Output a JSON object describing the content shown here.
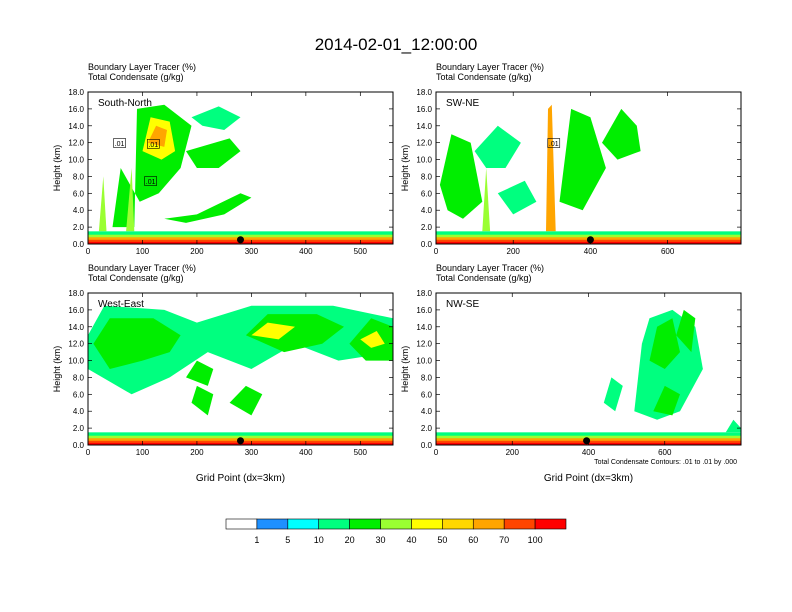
{
  "figure": {
    "title": "2014-02-01_12:00:00",
    "contour_note": "Total Condensate Contours: .01 to .01 by .000"
  },
  "chart_data": [
    {
      "type": "heatmap",
      "panel_label": "South-North",
      "header_lines": [
        "Boundary Layer Tracer    (%)",
        "Total Condensate    (g/kg)"
      ],
      "ylabel": "Height (km)",
      "xlabel": "",
      "xlim": [
        0,
        560
      ],
      "ylim": [
        0,
        18
      ],
      "xticks": [
        0,
        100,
        200,
        300,
        400,
        500
      ],
      "yticks": [
        "0.0",
        "2.0",
        "4.0",
        "6.0",
        "8.0",
        "10.0",
        "12.0",
        "14.0",
        "16.0",
        "18.0"
      ],
      "marker_x": 280,
      "contour_labels": [
        {
          "text": ".01",
          "x": 58,
          "y": 11.9
        },
        {
          "text": ".01",
          "x": 120,
          "y": 11.8
        },
        {
          "text": ".01",
          "x": 115,
          "y": 7.4
        }
      ],
      "regions": [
        {
          "value": 20,
          "pts": [
            [
              45,
              2
            ],
            [
              85,
              2
            ],
            [
              90,
              16
            ],
            [
              140,
              16.5
            ],
            [
              190,
              14
            ],
            [
              170,
              9
            ],
            [
              130,
              6
            ],
            [
              95,
              5
            ],
            [
              60,
              9
            ]
          ]
        },
        {
          "value": 40,
          "pts": [
            [
              100,
              11
            ],
            [
              115,
              15
            ],
            [
              150,
              14.5
            ],
            [
              160,
              11
            ],
            [
              135,
              10
            ]
          ]
        },
        {
          "value": 60,
          "pts": [
            [
              110,
              12
            ],
            [
              125,
              14
            ],
            [
              145,
              13.5
            ],
            [
              140,
              11.5
            ]
          ]
        },
        {
          "value": 20,
          "pts": [
            [
              140,
              3
            ],
            [
              200,
              3.5
            ],
            [
              280,
              6
            ],
            [
              300,
              5.5
            ],
            [
              250,
              3.5
            ],
            [
              180,
              2.5
            ]
          ]
        },
        {
          "value": 20,
          "pts": [
            [
              180,
              11
            ],
            [
              260,
              12.5
            ],
            [
              280,
              11
            ],
            [
              240,
              9
            ],
            [
              200,
              9
            ]
          ]
        },
        {
          "value": 10,
          "pts": [
            [
              190,
              15
            ],
            [
              240,
              16.3
            ],
            [
              280,
              15
            ],
            [
              250,
              13.5
            ],
            [
              210,
              14
            ]
          ]
        },
        {
          "value": 30,
          "pts": [
            [
              70,
              1.5
            ],
            [
              80,
              9
            ],
            [
              85,
              1.5
            ]
          ]
        },
        {
          "value": 30,
          "pts": [
            [
              20,
              1.5
            ],
            [
              28,
              8
            ],
            [
              34,
              1.5
            ]
          ]
        }
      ]
    },
    {
      "type": "heatmap",
      "panel_label": "SW-NE",
      "header_lines": [
        "Boundary Layer Tracer    (%)",
        "Total Condensate    (g/kg)"
      ],
      "ylabel": "Height (km)",
      "xlabel": "",
      "xlim": [
        0,
        790
      ],
      "ylim": [
        0,
        18
      ],
      "xticks": [
        0,
        200,
        400,
        600
      ],
      "yticks": [
        "0.0",
        "2.0",
        "4.0",
        "6.0",
        "8.0",
        "10.0",
        "12.0",
        "14.0",
        "16.0",
        "18.0"
      ],
      "marker_x": 400,
      "contour_labels": [
        {
          "text": ".01",
          "x": 305,
          "y": 11.9
        }
      ],
      "regions": [
        {
          "value": 20,
          "pts": [
            [
              10,
              7
            ],
            [
              40,
              13
            ],
            [
              90,
              12
            ],
            [
              120,
              5
            ],
            [
              70,
              3
            ],
            [
              30,
              4
            ]
          ]
        },
        {
          "value": 10,
          "pts": [
            [
              100,
              11
            ],
            [
              160,
              14
            ],
            [
              220,
              12
            ],
            [
              180,
              9
            ],
            [
              130,
              9
            ]
          ]
        },
        {
          "value": 10,
          "pts": [
            [
              160,
              6
            ],
            [
              230,
              7.5
            ],
            [
              260,
              5
            ],
            [
              200,
              3.5
            ]
          ]
        },
        {
          "value": 20,
          "pts": [
            [
              320,
              5
            ],
            [
              350,
              16
            ],
            [
              400,
              15
            ],
            [
              440,
              9
            ],
            [
              380,
              4
            ]
          ]
        },
        {
          "value": 20,
          "pts": [
            [
              430,
              12
            ],
            [
              480,
              16
            ],
            [
              520,
              14
            ],
            [
              530,
              11
            ],
            [
              470,
              10
            ]
          ]
        },
        {
          "value": 60,
          "pts": [
            [
              285,
              1.5
            ],
            [
              290,
              16
            ],
            [
              300,
              16.5
            ],
            [
              310,
              1.5
            ]
          ]
        },
        {
          "value": 30,
          "pts": [
            [
              120,
              1.5
            ],
            [
              130,
              9
            ],
            [
              140,
              1.5
            ]
          ]
        }
      ]
    },
    {
      "type": "heatmap",
      "panel_label": "West-East",
      "header_lines": [
        "Boundary Layer Tracer    (%)",
        "Total Condensate    (g/kg)"
      ],
      "ylabel": "Height (km)",
      "xlabel": "Grid Point (dx=3km)",
      "xlim": [
        0,
        560
      ],
      "ylim": [
        0,
        18
      ],
      "xticks": [
        0,
        100,
        200,
        300,
        400,
        500
      ],
      "yticks": [
        "0.0",
        "2.0",
        "4.0",
        "6.0",
        "8.0",
        "10.0",
        "12.0",
        "14.0",
        "16.0",
        "18.0"
      ],
      "marker_x": 280,
      "contour_labels": [],
      "regions": [
        {
          "value": 10,
          "pts": [
            [
              0,
              13
            ],
            [
              30,
              16.5
            ],
            [
              140,
              16
            ],
            [
              200,
              14.5
            ],
            [
              300,
              16.5
            ],
            [
              450,
              16.5
            ],
            [
              560,
              15
            ],
            [
              560,
              11
            ],
            [
              460,
              10
            ],
            [
              380,
              12
            ],
            [
              300,
              9
            ],
            [
              220,
              11
            ],
            [
              150,
              8
            ],
            [
              80,
              6
            ],
            [
              0,
              9
            ]
          ]
        },
        {
          "value": 20,
          "pts": [
            [
              10,
              12
            ],
            [
              40,
              15
            ],
            [
              120,
              15
            ],
            [
              170,
              13
            ],
            [
              150,
              11
            ],
            [
              100,
              10
            ],
            [
              40,
              9
            ]
          ]
        },
        {
          "value": 20,
          "pts": [
            [
              290,
              13
            ],
            [
              330,
              15.5
            ],
            [
              420,
              15.5
            ],
            [
              470,
              14
            ],
            [
              430,
              12
            ],
            [
              360,
              11
            ]
          ]
        },
        {
          "value": 20,
          "pts": [
            [
              480,
              12
            ],
            [
              520,
              15
            ],
            [
              560,
              14
            ],
            [
              560,
              10
            ],
            [
              510,
              10
            ]
          ]
        },
        {
          "value": 20,
          "pts": [
            [
              180,
              8
            ],
            [
              200,
              10
            ],
            [
              230,
              9
            ],
            [
              220,
              7
            ]
          ]
        },
        {
          "value": 20,
          "pts": [
            [
              190,
              5
            ],
            [
              200,
              7
            ],
            [
              230,
              6
            ],
            [
              220,
              3.5
            ]
          ]
        },
        {
          "value": 20,
          "pts": [
            [
              260,
              5
            ],
            [
              290,
              7
            ],
            [
              320,
              6
            ],
            [
              300,
              3.5
            ]
          ]
        },
        {
          "value": 40,
          "pts": [
            [
              300,
              13
            ],
            [
              330,
              14.5
            ],
            [
              380,
              14
            ],
            [
              350,
              12.5
            ]
          ]
        },
        {
          "value": 40,
          "pts": [
            [
              500,
              12.5
            ],
            [
              530,
              13.5
            ],
            [
              545,
              12
            ],
            [
              520,
              11.5
            ]
          ]
        }
      ]
    },
    {
      "type": "heatmap",
      "panel_label": "NW-SE",
      "header_lines": [
        "Boundary Layer Tracer    (%)",
        "Total Condensate    (g/kg)"
      ],
      "ylabel": "Height (km)",
      "xlabel": "Grid Point (dx=3km)",
      "xlim": [
        0,
        800
      ],
      "ylim": [
        0,
        18
      ],
      "xticks": [
        0,
        200,
        400,
        600
      ],
      "yticks": [
        "0.0",
        "2.0",
        "4.0",
        "6.0",
        "8.0",
        "10.0",
        "12.0",
        "14.0",
        "16.0",
        "18.0"
      ],
      "marker_x": 395,
      "contour_labels": [],
      "regions": [
        {
          "value": 10,
          "pts": [
            [
              520,
              4
            ],
            [
              540,
              12
            ],
            [
              560,
              15
            ],
            [
              620,
              16
            ],
            [
              680,
              14
            ],
            [
              700,
              9
            ],
            [
              640,
              4
            ],
            [
              580,
              3
            ]
          ]
        },
        {
          "value": 20,
          "pts": [
            [
              560,
              10
            ],
            [
              580,
              14
            ],
            [
              620,
              15
            ],
            [
              640,
              11
            ],
            [
              600,
              9
            ]
          ]
        },
        {
          "value": 20,
          "pts": [
            [
              570,
              4
            ],
            [
              600,
              7
            ],
            [
              640,
              6
            ],
            [
              620,
              3.5
            ]
          ]
        },
        {
          "value": 20,
          "pts": [
            [
              630,
              13
            ],
            [
              650,
              16
            ],
            [
              680,
              15
            ],
            [
              670,
              11
            ]
          ]
        },
        {
          "value": 10,
          "pts": [
            [
              440,
              5
            ],
            [
              460,
              8
            ],
            [
              490,
              7
            ],
            [
              470,
              4
            ]
          ]
        },
        {
          "value": 10,
          "pts": [
            [
              760,
              1.5
            ],
            [
              780,
              3
            ],
            [
              800,
              2
            ],
            [
              800,
              1.5
            ]
          ]
        }
      ]
    }
  ],
  "colorbar": {
    "labels": [
      "1",
      "5",
      "10",
      "20",
      "30",
      "40",
      "50",
      "60",
      "70",
      "100"
    ],
    "colors": [
      "#ffffff",
      "#1e90ff",
      "#00ffff",
      "#00ff7f",
      "#00ee00",
      "#9aff32",
      "#ffff00",
      "#ffd700",
      "#ffa500",
      "#ff4500",
      "#ff0000"
    ]
  }
}
